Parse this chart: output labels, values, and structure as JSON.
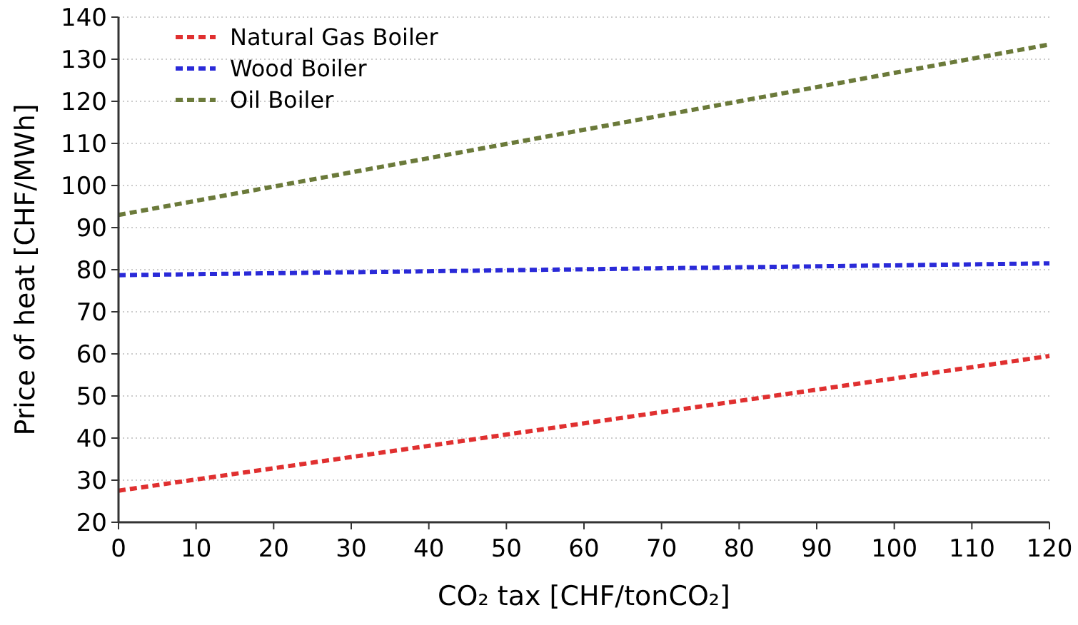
{
  "chart_data": {
    "type": "line",
    "xlabel": "CO₂ tax [CHF/tonCO₂]",
    "ylabel": "Price of heat [CHF/MWh]",
    "xlim": [
      0,
      120
    ],
    "xticks": [
      0,
      10,
      20,
      30,
      40,
      50,
      60,
      70,
      80,
      90,
      100,
      110,
      120
    ],
    "ylim": [
      20,
      140
    ],
    "yticks": [
      20,
      30,
      40,
      50,
      60,
      70,
      80,
      90,
      100,
      110,
      120,
      130,
      140
    ],
    "grid": "y",
    "legend": "top left",
    "line_style": "dashed",
    "marker": "none",
    "x": [
      0,
      120
    ],
    "series": [
      {
        "name": "Natural Gas Boiler",
        "color": "#e03030",
        "values": [
          27.5,
          59.5
        ]
      },
      {
        "name": "Wood Boiler",
        "color": "#2a2ad8",
        "values": [
          78.7,
          81.5
        ]
      },
      {
        "name": "Oil Boiler",
        "color": "#6b7a3a",
        "values": [
          93,
          133.5
        ]
      }
    ]
  }
}
